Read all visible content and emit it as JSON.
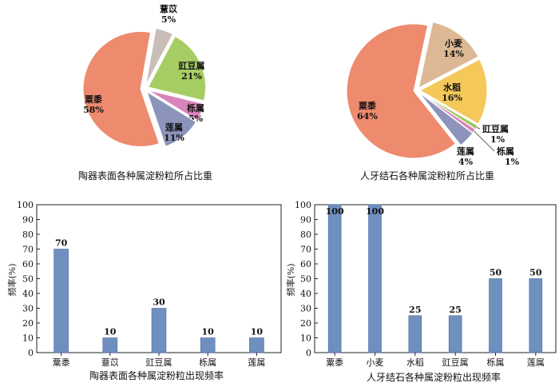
{
  "chart_data": [
    {
      "type": "pie",
      "title": "陶器表面各种属淀粉粒所占比重",
      "slices": [
        {
          "label": "薏苡",
          "value": 5,
          "pct_label": "5%",
          "color": "#c9bdb8"
        },
        {
          "label": "豇豆属",
          "value": 21,
          "pct_label": "21%",
          "color": "#a6cd64"
        },
        {
          "label": "栎属",
          "value": 5,
          "pct_label": "5%",
          "color": "#d985bb"
        },
        {
          "label": "莲属",
          "value": 11,
          "pct_label": "11%",
          "color": "#8c94bb"
        },
        {
          "label": "粟黍",
          "value": 58,
          "pct_label": "58%",
          "color": "#ee8a6e"
        }
      ]
    },
    {
      "type": "pie",
      "title": "人牙结石各种属淀粉粒所占比重",
      "slices": [
        {
          "label": "小麦",
          "value": 14,
          "pct_label": "14%",
          "color": "#dcb894"
        },
        {
          "label": "水稻",
          "value": 16,
          "pct_label": "16%",
          "color": "#f4c95a"
        },
        {
          "label": "豇豆属",
          "value": 1,
          "pct_label": "1%",
          "color": "#9ec864"
        },
        {
          "label": "栎属",
          "value": 1,
          "pct_label": "1%",
          "color": "#d985bb"
        },
        {
          "label": "莲属",
          "value": 4,
          "pct_label": "4%",
          "color": "#8c94bb"
        },
        {
          "label": "粟黍",
          "value": 64,
          "pct_label": "64%",
          "color": "#ee8a6e"
        }
      ]
    },
    {
      "type": "bar",
      "title": "陶器表面各种属淀粉粒出现频率",
      "ylabel": "频率(%)",
      "categories": [
        "粟黍",
        "薏苡",
        "豇豆属",
        "栎属",
        "莲属"
      ],
      "values": [
        70,
        10,
        30,
        10,
        10
      ],
      "ylim": [
        0,
        100
      ],
      "yticks": [
        0,
        10,
        20,
        30,
        40,
        50,
        60,
        70,
        80,
        90,
        100
      ],
      "bar_color": "#6f8fbe"
    },
    {
      "type": "bar",
      "title": "人牙结石各种属淀粉粒出现频率",
      "ylabel": "频率(%)",
      "categories": [
        "粟黍",
        "小麦",
        "水稻",
        "豇豆属",
        "栎属",
        "莲属"
      ],
      "values": [
        100,
        100,
        25,
        25,
        50,
        50
      ],
      "ylim": [
        0,
        100
      ],
      "yticks": [
        0,
        10,
        20,
        30,
        40,
        50,
        60,
        70,
        80,
        90,
        100
      ],
      "bar_color": "#6f8fbe"
    }
  ]
}
